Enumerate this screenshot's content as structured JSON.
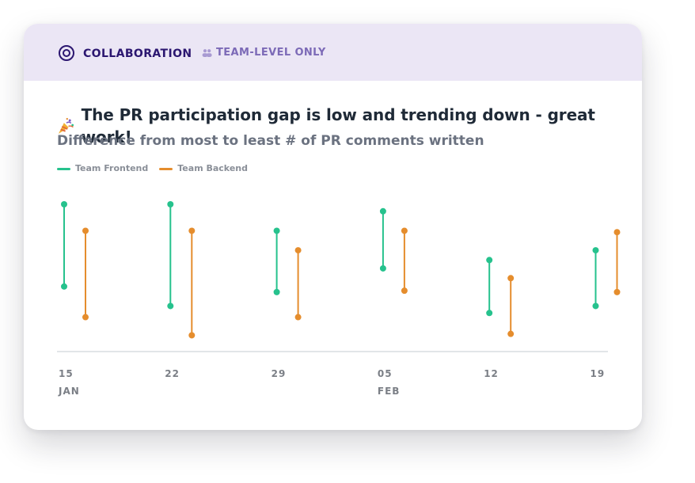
{
  "header": {
    "title": "COLLABORATION",
    "badge": "TEAM-LEVEL ONLY",
    "icon": "target-icon",
    "badge_icon": "team-icon"
  },
  "headline": "The PR participation gap is low and trending down - great work!",
  "subtitle": "Difference from most to least # of PR comments written",
  "legend": [
    {
      "label": "Team Frontend",
      "color": "#26c28d"
    },
    {
      "label": "Team Backend",
      "color": "#e58d2d"
    }
  ],
  "colors": {
    "header_bg": "#ebe6f5",
    "accent": "#2b1670",
    "frontend": "#26c28d",
    "backend": "#e58d2d"
  },
  "chart_data": {
    "type": "range",
    "title": "The PR participation gap is low and trending down - great work!",
    "subtitle": "Difference from most to least # of PR comments written",
    "categories": [
      "15",
      "22",
      "29",
      "05",
      "12",
      "19"
    ],
    "category_months": [
      "JAN",
      "",
      "",
      "FEB",
      "",
      ""
    ],
    "series": [
      {
        "name": "Team Frontend",
        "color": "#26c28d",
        "ranges": [
          [
            41,
            100
          ],
          [
            27,
            100
          ],
          [
            37,
            81
          ],
          [
            54,
            95
          ],
          [
            22,
            60
          ],
          [
            27,
            67
          ]
        ]
      },
      {
        "name": "Team Backend",
        "color": "#e58d2d",
        "ranges": [
          [
            19,
            81
          ],
          [
            6,
            81
          ],
          [
            19,
            67
          ],
          [
            38,
            81
          ],
          [
            7,
            47
          ],
          [
            37,
            80
          ]
        ]
      }
    ],
    "ylim": [
      0,
      100
    ],
    "grid": false,
    "legend_position": "top-left"
  }
}
